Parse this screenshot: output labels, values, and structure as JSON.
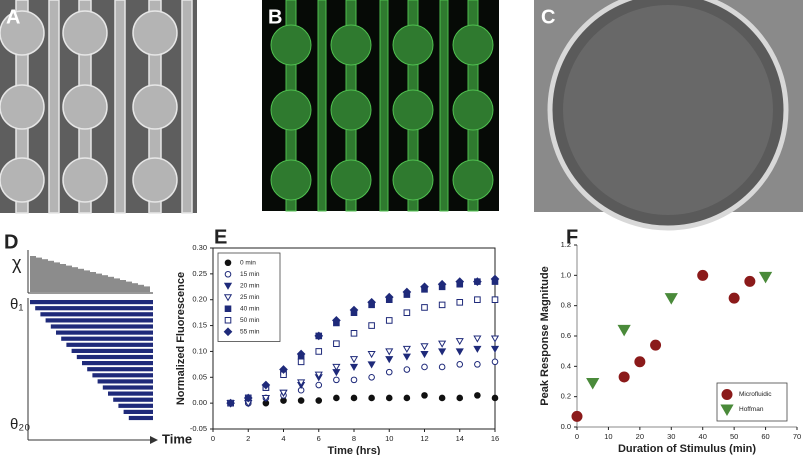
{
  "panel_labels": [
    "A",
    "B",
    "C",
    "D",
    "E",
    "F"
  ],
  "schematic": {
    "y_label": "χ",
    "row_first": "θ₁",
    "row_last": "θ₂₀",
    "x_label": "Time"
  },
  "chart_data": [
    {
      "type": "scatter",
      "xlabel": "Time (hrs)",
      "ylabel": "Normalized Fluorescence",
      "xlim": [
        0,
        16
      ],
      "xticks": [
        0,
        2,
        4,
        6,
        8,
        10,
        12,
        14,
        16
      ],
      "ylim": [
        -0.05,
        0.3
      ],
      "yticks": [
        -0.05,
        {
          "value": 0,
          "label": "0.00"
        },
        0.05,
        {
          "value": 0.1,
          "label": "0.10"
        },
        0.15,
        {
          "value": 0.2,
          "label": "0.20"
        },
        0.25,
        {
          "value": 0.3,
          "label": "0.30"
        }
      ],
      "box": true,
      "legend": "upper left",
      "x": [
        1,
        2,
        3,
        4,
        5,
        6,
        7,
        8,
        9,
        10,
        11,
        12,
        13,
        14,
        15,
        16
      ],
      "series": [
        {
          "name": "0 min",
          "color": "#111111",
          "marker": "circle",
          "filled": true,
          "values": [
            0,
            0,
            0,
            0.005,
            0.005,
            0.005,
            0.01,
            0.01,
            0.01,
            0.01,
            0.01,
            0.015,
            0.01,
            0.01,
            0.015,
            0.01
          ]
        },
        {
          "name": "15 min",
          "color": "#1f2a7a",
          "marker": "circle",
          "filled": false,
          "values": [
            0,
            0,
            0.01,
            0.015,
            0.025,
            0.035,
            0.045,
            0.045,
            0.05,
            0.06,
            0.065,
            0.07,
            0.07,
            0.075,
            0.075,
            0.08
          ]
        },
        {
          "name": "20 min",
          "color": "#1f2a7a",
          "marker": "triangle-down",
          "filled": true,
          "values": [
            0,
            0,
            0.01,
            0.02,
            0.035,
            0.05,
            0.06,
            0.07,
            0.075,
            0.085,
            0.09,
            0.095,
            0.1,
            0.1,
            0.105,
            0.105
          ]
        },
        {
          "name": "25 min",
          "color": "#1f2a7a",
          "marker": "triangle-down",
          "filled": false,
          "values": [
            0,
            0,
            0.01,
            0.02,
            0.04,
            0.055,
            0.07,
            0.085,
            0.095,
            0.1,
            0.105,
            0.11,
            0.115,
            0.12,
            0.125,
            0.125
          ]
        },
        {
          "name": "40 min",
          "color": "#1f2a7a",
          "marker": "square",
          "filled": true,
          "values": [
            0,
            0.01,
            0.03,
            0.06,
            0.09,
            0.13,
            0.155,
            0.175,
            0.19,
            0.2,
            0.21,
            0.22,
            0.225,
            0.23,
            0.235,
            0.235
          ]
        },
        {
          "name": "50 min",
          "color": "#1f2a7a",
          "marker": "square",
          "filled": false,
          "values": [
            0,
            0.01,
            0.03,
            0.055,
            0.08,
            0.1,
            0.115,
            0.135,
            0.15,
            0.16,
            0.175,
            0.185,
            0.19,
            0.195,
            0.2,
            0.2
          ]
        },
        {
          "name": "55 min",
          "color": "#1f2a7a",
          "marker": "diamond",
          "filled": true,
          "values": [
            0,
            0.01,
            0.035,
            0.065,
            0.095,
            0.13,
            0.16,
            0.18,
            0.195,
            0.205,
            0.215,
            0.225,
            0.23,
            0.235,
            0.235,
            0.24
          ]
        }
      ]
    },
    {
      "type": "scatter",
      "xlabel": "Duration of Stimulus (min)",
      "ylabel": "Peak Response Magnitude",
      "xlim": [
        0,
        70
      ],
      "xticks": [
        0,
        10,
        20,
        30,
        40,
        50,
        60,
        70
      ],
      "ylim": [
        0,
        1.2
      ],
      "yticks": [
        {
          "value": 0,
          "label": "0.0"
        },
        0.2,
        0.4,
        0.6,
        0.8,
        {
          "value": 1,
          "label": "1.0"
        },
        1.2
      ],
      "box": false,
      "legend": "lower right",
      "series": [
        {
          "name": "Microfluidic",
          "color": "#8b1a1a",
          "marker": "circle",
          "filled": true,
          "x": [
            0,
            15,
            20,
            25,
            40,
            50,
            55
          ],
          "values": [
            0.07,
            0.33,
            0.43,
            0.54,
            1,
            0.85,
            0.96
          ]
        },
        {
          "name": "Hoffman",
          "color": "#4a8a3a",
          "marker": "triangle-down",
          "filled": true,
          "x": [
            5,
            15,
            30,
            60
          ],
          "values": [
            0.29,
            0.64,
            0.85,
            0.99
          ]
        }
      ]
    }
  ]
}
